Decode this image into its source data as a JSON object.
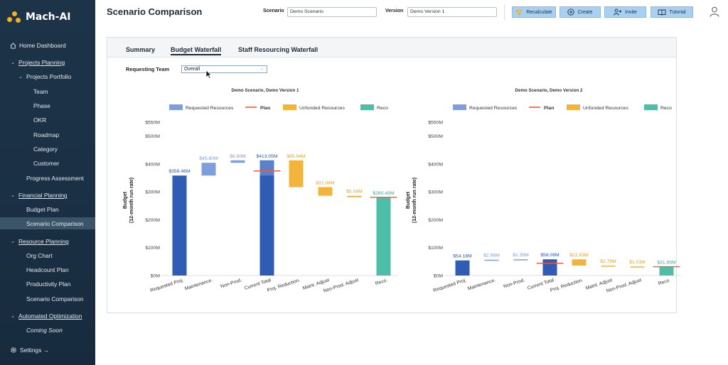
{
  "app": {
    "name": "Mach-AI"
  },
  "sidebar": {
    "items": [
      {
        "label": "Home Dashboard",
        "icon": "home-icon"
      },
      {
        "label": "Projects Planning",
        "icon": "chevron-down-icon"
      },
      {
        "label": "Projects Portfolio",
        "icon": "chevron-down-icon"
      },
      {
        "label": "Team"
      },
      {
        "label": "Phase"
      },
      {
        "label": "OKR"
      },
      {
        "label": "Roadmap"
      },
      {
        "label": "Category"
      },
      {
        "label": "Customer"
      },
      {
        "label": "Progress Assessment"
      },
      {
        "label": "Financial Planning",
        "icon": "chevron-down-icon"
      },
      {
        "label": "Budget Plan"
      },
      {
        "label": "Scenario Comparison"
      },
      {
        "label": "Resource Planning",
        "icon": "chevron-down-icon"
      },
      {
        "label": "Org Chart"
      },
      {
        "label": "Headcount Plan"
      },
      {
        "label": "Productivity Plan"
      },
      {
        "label": "Scenario Comparison"
      },
      {
        "label": "Automated Optimization",
        "icon": "chevron-down-icon"
      },
      {
        "label": "Coming Soon"
      }
    ],
    "settings": "Settings →"
  },
  "header": {
    "title": "Scenario Comparison",
    "scenario_label": "Scenario",
    "scenario_value": "Demo Scenario",
    "version_label": "Version",
    "version_value": "Demo Version 1",
    "buttons": {
      "recalculate": "Recalculate",
      "create": "Create",
      "invite": "Invite",
      "tutorial": "Tutorial"
    }
  },
  "tabs": [
    "Summary",
    "Budget Waterfall",
    "Staff Resourcing Waterfall"
  ],
  "active_tab": "Budget Waterfall",
  "filter": {
    "label": "Requesting Team",
    "value": "Overall"
  },
  "colors": {
    "requested": "#2f5db5",
    "requested_light": "#7e9fdb",
    "plan": "#ef5b3b",
    "unfunded": "#f2b43a",
    "reco": "#4dbfa8"
  },
  "chart_data": [
    {
      "type": "bar",
      "title": "Demo Scenario, Demo Version 1",
      "legend": [
        "Requested Resources",
        "Plan",
        "Unfunded Resources",
        "Reco"
      ],
      "ylabel": "Budget\n(12-month run rate)",
      "yticks": [
        "$0M",
        "$100M",
        "$200M",
        "$300M",
        "$400M",
        "$500M",
        "$550M"
      ],
      "ylim": [
        0,
        550
      ],
      "categories": [
        "Requested Proj.",
        "Maintenance.",
        "Non-Prod.",
        "Current Total",
        "Proj. Reduction.",
        "Maint. Adjust",
        "Non-Prod. Adjust",
        "Reco."
      ],
      "bars": [
        {
          "kind": "requested",
          "base": 0,
          "top": 358.46,
          "label": "$358.46M"
        },
        {
          "kind": "requested_light",
          "base": 358.46,
          "top": 404.26,
          "label": "$45.80M"
        },
        {
          "kind": "requested_light",
          "base": 404.26,
          "top": 413.06,
          "label": "$8.80M"
        },
        {
          "kind": "requested",
          "base": 0,
          "top": 413.05,
          "label": "$413.05M"
        },
        {
          "kind": "unfunded",
          "base": 317.11,
          "top": 413.05,
          "label": "$95.94M"
        },
        {
          "kind": "unfunded",
          "base": 286.07,
          "top": 317.11,
          "label": "$31.04M"
        },
        {
          "kind": "unfunded",
          "base": 280.49,
          "top": 286.07,
          "label": "$5.58M"
        },
        {
          "kind": "reco",
          "base": 0,
          "top": 280.49,
          "label": "$280.49M"
        }
      ],
      "plan_lines": [
        {
          "category": "Current Total",
          "value": 375
        },
        {
          "category": "Reco.",
          "value": 280.49
        }
      ]
    },
    {
      "type": "bar",
      "title": "Demo Scenario, Demo Version 2",
      "legend": [
        "Requested Resources",
        "Plan",
        "Unfunded Resources",
        "Reco"
      ],
      "ylabel": "Budget\n(12-month run rate)",
      "yticks": [
        "$0M",
        "$100M",
        "$200M",
        "$300M",
        "$400M",
        "$500M",
        "$550M"
      ],
      "ylim": [
        0,
        550
      ],
      "categories": [
        "Requested Proj.",
        "Maintenance.",
        "Non-Prod.",
        "Current Total",
        "Proj. Reduction.",
        "Maint. Adjust",
        "Non-Prod. Adjust",
        "Reco."
      ],
      "bars": [
        {
          "kind": "requested",
          "base": 0,
          "top": 54.18,
          "label": "$54.18M"
        },
        {
          "kind": "requested_light",
          "base": 54.18,
          "top": 56.74,
          "label": "$2.56M"
        },
        {
          "kind": "requested_light",
          "base": 56.74,
          "top": 58.09,
          "label": "$1.35M"
        },
        {
          "kind": "requested",
          "base": 0,
          "top": 58.09,
          "label": "$58.09M"
        },
        {
          "kind": "unfunded",
          "base": 35.46,
          "top": 58.09,
          "label": "$22.63M"
        },
        {
          "kind": "unfunded",
          "base": 32.68,
          "top": 35.46,
          "label": "$2.78M"
        },
        {
          "kind": "unfunded",
          "base": 31.65,
          "top": 32.68,
          "label": "$1.03M"
        },
        {
          "kind": "reco",
          "base": 0,
          "top": 31.65,
          "label": "$31.65M"
        }
      ],
      "plan_lines": [
        {
          "category": "Current Total",
          "value": 44
        },
        {
          "category": "Reco.",
          "value": 31.65
        }
      ]
    }
  ]
}
